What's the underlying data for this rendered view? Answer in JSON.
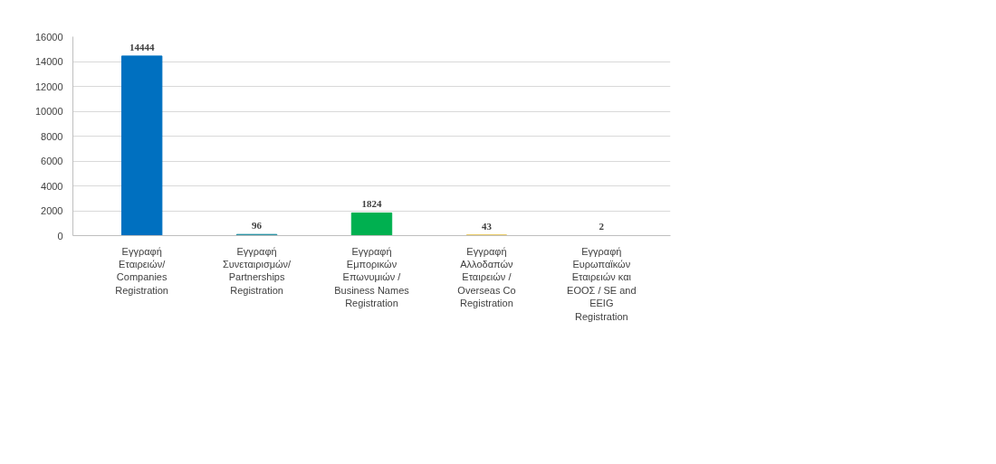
{
  "chart_data": {
    "type": "bar",
    "categories": [
      "Εγγραφή Εταιρειών/ Companies Registration",
      "Εγγραφή Συνεταιρισμών/ Partnerships Registration",
      "Εγγραφή Εμπορικών Επωνυμιών / Business Names Registration",
      "Εγγραφή Αλλοδαπών Εταιρειών / Overseas Co Registration",
      "Εγγραφή Ευρωπαϊκών Εταιρειών και ΕΟΟΣ / SE and EEIG Registration"
    ],
    "values": [
      14444,
      96,
      1824,
      43,
      2
    ],
    "colors": [
      "#0070c0",
      "#1b8a9c",
      "#00b050",
      "#d9a800",
      "#6b2d91"
    ],
    "ylim": [
      0,
      16000
    ],
    "yticks": [
      0,
      2000,
      4000,
      6000,
      8000,
      10000,
      12000,
      14000,
      16000
    ],
    "grid": "y",
    "data_labels": true
  }
}
